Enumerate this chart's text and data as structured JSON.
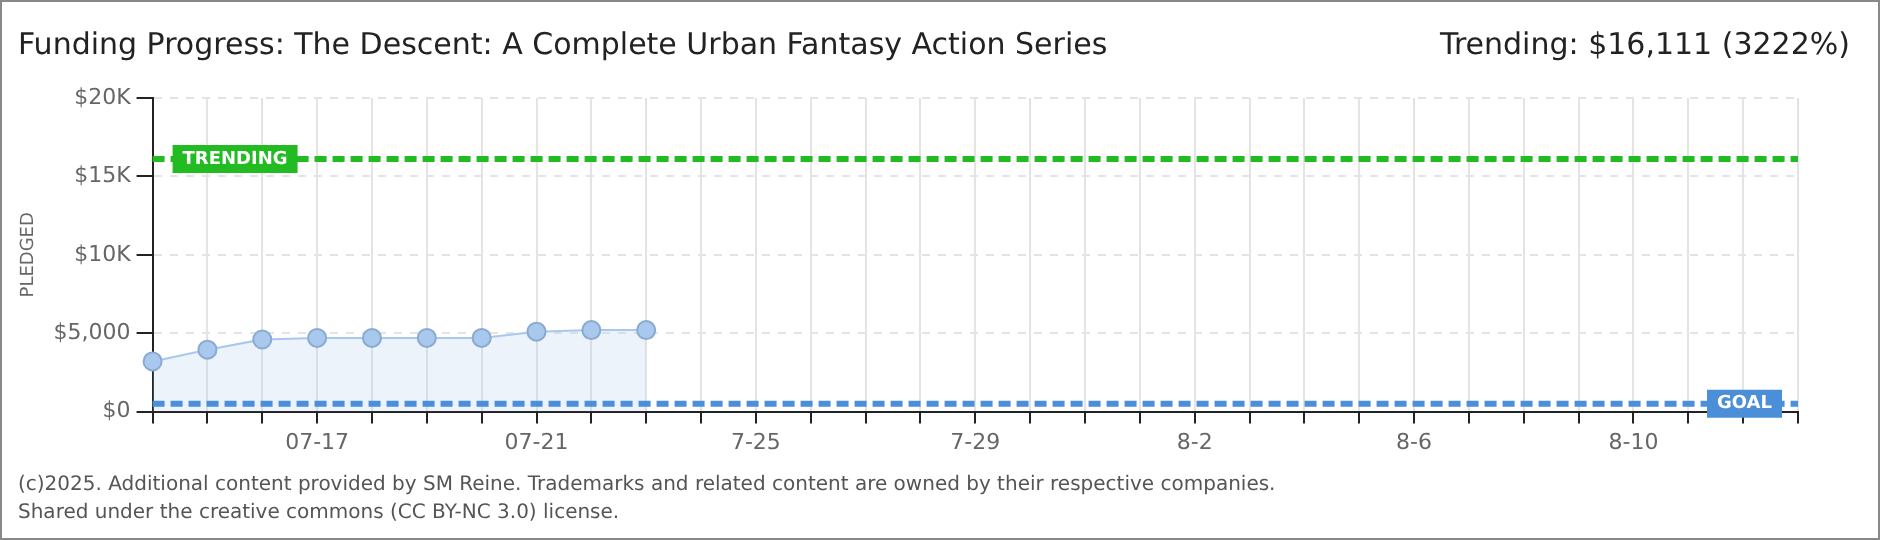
{
  "chart_data": {
    "type": "area",
    "title": "Funding Progress: The Descent: A Complete Urban Fantasy Action Series",
    "ylabel": "PLEDGED",
    "annotations": [
      "Trending:  $16,111 (3222%)",
      "(c)2025. Additional content provided by SM Reine. Trademarks and related content are owned by their respective companies.",
      "Shared under the creative commons (CC BY-NC 3.0) license."
    ],
    "categories": [
      null,
      null,
      null,
      "07-17",
      null,
      null,
      null,
      "07-21",
      null,
      null,
      null,
      "7-25",
      null,
      null,
      null,
      "7-29",
      null,
      null,
      null,
      "8-2",
      null,
      null,
      null,
      "8-6",
      null,
      null,
      null,
      "8-10",
      null,
      null,
      null
    ],
    "series": [
      {
        "color": "#a9c8ee",
        "values": [
          3200,
          3950,
          4600,
          4700,
          4700,
          4700,
          4700,
          5100,
          5200,
          5200,
          null,
          null,
          null,
          null,
          null,
          null,
          null,
          null,
          null,
          null,
          null,
          null,
          null,
          null,
          null,
          null,
          null,
          null,
          null,
          null,
          null
        ]
      }
    ],
    "ylim": [
      0,
      20000
    ],
    "yticks": [
      {
        "value": 0,
        "label": "$0"
      },
      {
        "value": 5000,
        "label": "$5,000"
      },
      {
        "value": 10000,
        "label": "$10K"
      },
      {
        "value": 15000,
        "label": "$15K"
      },
      {
        "value": 20000,
        "label": "$20K"
      }
    ],
    "ref_lines": [
      {
        "axis": "y",
        "value": 16111,
        "label": "TRENDING",
        "color": "#22bb22",
        "line_style": "dashed"
      },
      {
        "axis": "y",
        "value": 500,
        "label": "GOAL",
        "color": "#4a8fd8",
        "line_style": "dashed"
      }
    ],
    "grid": true,
    "marker": "circle",
    "legend": false
  }
}
